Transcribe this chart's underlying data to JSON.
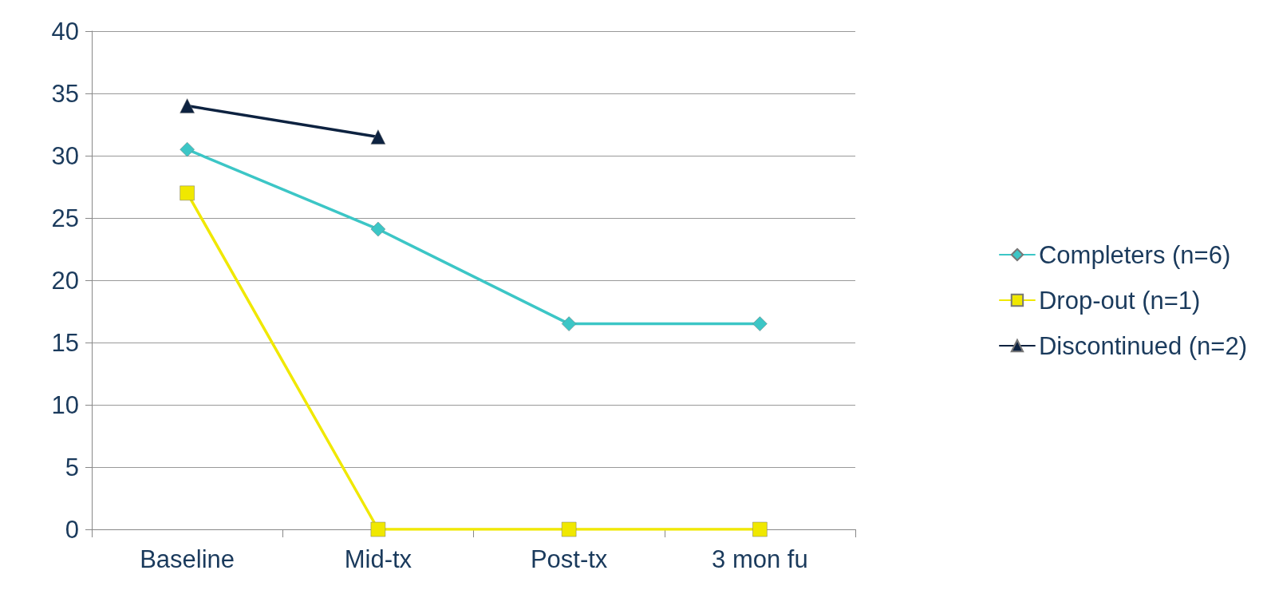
{
  "chart_data": {
    "type": "line",
    "categories": [
      "Baseline",
      "Mid-tx",
      "Post-tx",
      "3 mon fu"
    ],
    "series": [
      {
        "name": "Completers (n=6)",
        "color": "#3cc6c6",
        "marker": "diamond",
        "values": [
          30.5,
          24.1,
          16.5,
          16.5
        ]
      },
      {
        "name": "Drop-out (n=1)",
        "color": "#f0e800",
        "marker": "square",
        "values": [
          27,
          0,
          0,
          0
        ]
      },
      {
        "name": "Discontinued (n=2)",
        "color": "#0d2240",
        "marker": "triangle",
        "values": [
          34,
          31.5,
          null,
          null
        ]
      }
    ],
    "ylim": [
      0,
      40
    ],
    "yticks": [
      0,
      5,
      10,
      15,
      20,
      25,
      30,
      35,
      40
    ],
    "grid": "y",
    "legend": "right",
    "line_style": "solid"
  }
}
